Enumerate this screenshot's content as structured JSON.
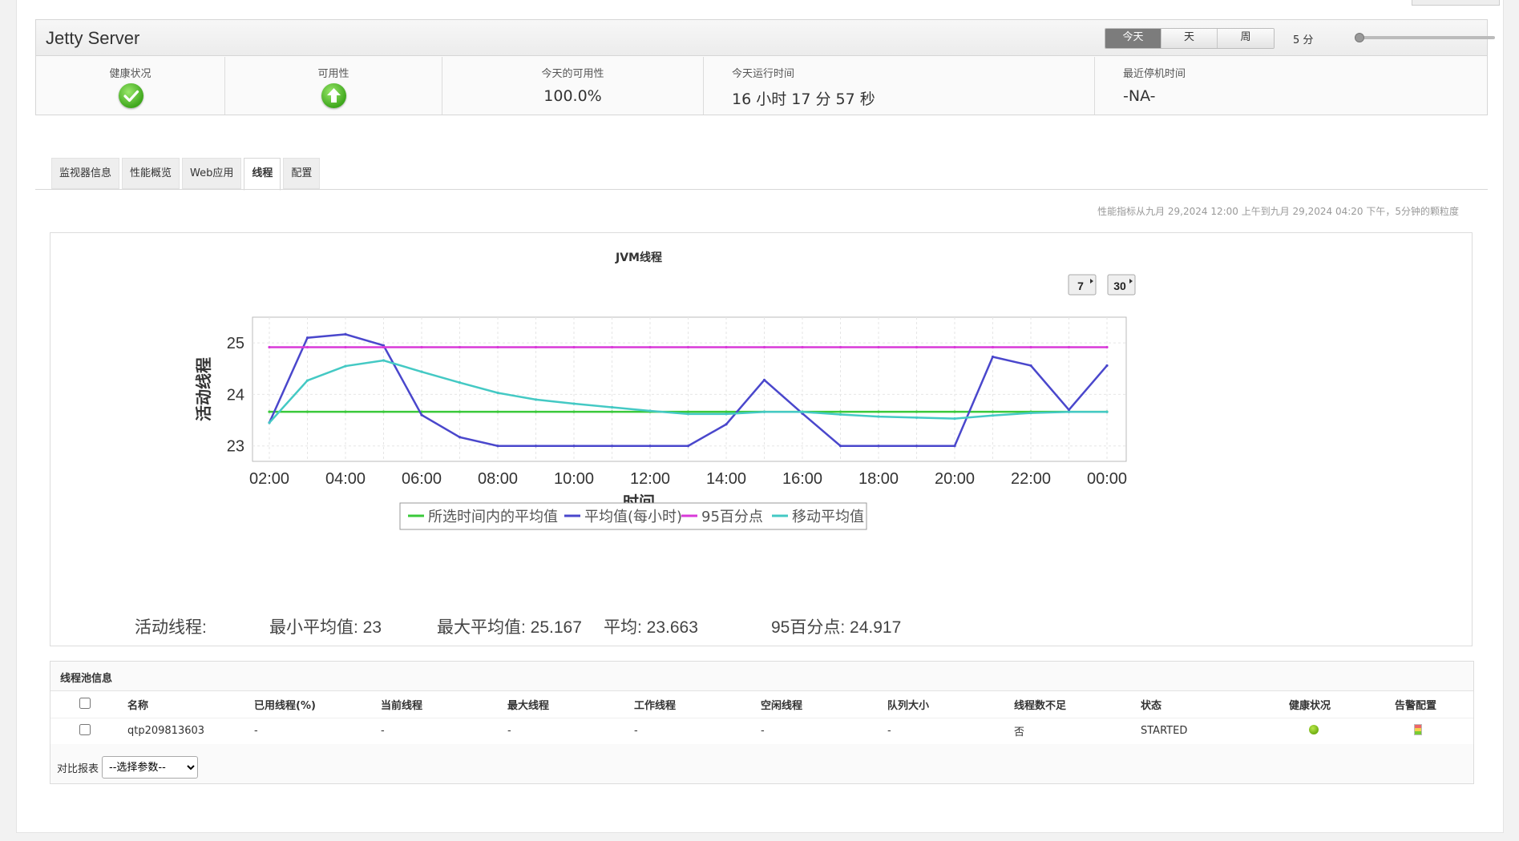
{
  "header": {
    "title": "Jetty Server",
    "period_buttons": [
      {
        "label": "今天",
        "active": true
      },
      {
        "label": "天",
        "active": false
      },
      {
        "label": "周",
        "active": false
      }
    ],
    "interval_label": "5 分",
    "stats": {
      "health": {
        "label": "健康状况",
        "icon": "check-icon",
        "color": "#4caf2a"
      },
      "availability": {
        "label": "可用性",
        "icon": "up-arrow-icon",
        "color": "#4caf2a"
      },
      "today_availability": {
        "label": "今天的可用性",
        "value": "100.0%"
      },
      "today_uptime": {
        "label": "今天运行时间",
        "value": "16 小时 17 分 57 秒"
      },
      "last_downtime": {
        "label": "最近停机时间",
        "value": "-NA-"
      }
    }
  },
  "tabs": [
    {
      "label": "监视器信息",
      "active": false
    },
    {
      "label": "性能概览",
      "active": false
    },
    {
      "label": "Web应用",
      "active": false
    },
    {
      "label": "线程",
      "active": true
    },
    {
      "label": "配置",
      "active": false
    }
  ],
  "metric_note": "性能指标从九月 29,2024 12:00 上午到九月 29,2024 04:20 下午，5分钟的颗粒度",
  "chart_buttons": {
    "seven": "7",
    "thirty": "30"
  },
  "chart_data": {
    "type": "line",
    "title": "JVM线程",
    "xlabel": "时间",
    "ylabel": "活动线程",
    "x_ticks": [
      "02:00",
      "04:00",
      "06:00",
      "08:00",
      "10:00",
      "12:00",
      "14:00",
      "16:00",
      "18:00",
      "20:00",
      "22:00",
      "00:00"
    ],
    "y_ticks": [
      23,
      24,
      25
    ],
    "ylim": [
      22.7,
      25.5
    ],
    "grid": true,
    "legend_position": "bottom",
    "x": [
      "02:00",
      "03:00",
      "04:00",
      "05:00",
      "06:00",
      "07:00",
      "08:00",
      "09:00",
      "10:00",
      "11:00",
      "12:00",
      "13:00",
      "14:00",
      "15:00",
      "16:00",
      "17:00",
      "18:00",
      "19:00",
      "20:00",
      "21:00",
      "22:00",
      "23:00",
      "00:00"
    ],
    "series": [
      {
        "name": "所选时间内的平均值",
        "color": "#3ac93a",
        "values": [
          23.663,
          23.663,
          23.663,
          23.663,
          23.663,
          23.663,
          23.663,
          23.663,
          23.663,
          23.663,
          23.663,
          23.663,
          23.663,
          23.663,
          23.663,
          23.663,
          23.663,
          23.663,
          23.663,
          23.663,
          23.663,
          23.663,
          23.663
        ]
      },
      {
        "name": "平均值(每小时)",
        "color": "#4a47cc",
        "values": [
          23.45,
          25.1,
          25.167,
          24.95,
          23.6,
          23.17,
          23.0,
          23.0,
          23.0,
          23.0,
          23.0,
          23.0,
          23.42,
          24.28,
          23.63,
          23.0,
          23.0,
          23.0,
          23.0,
          24.73,
          24.56,
          23.7,
          24.56
        ]
      },
      {
        "name": "95百分点",
        "color": "#d93ad9",
        "values": [
          24.917,
          24.917,
          24.917,
          24.917,
          24.917,
          24.917,
          24.917,
          24.917,
          24.917,
          24.917,
          24.917,
          24.917,
          24.917,
          24.917,
          24.917,
          24.917,
          24.917,
          24.917,
          24.917,
          24.917,
          24.917,
          24.917,
          24.917
        ]
      },
      {
        "name": "移动平均值",
        "color": "#44c9c4",
        "values": [
          23.45,
          24.27,
          24.55,
          24.66,
          24.44,
          24.23,
          24.03,
          23.9,
          23.82,
          23.75,
          23.68,
          23.62,
          23.62,
          23.66,
          23.66,
          23.61,
          23.57,
          23.55,
          23.53,
          23.59,
          23.64,
          23.66,
          23.66
        ]
      }
    ]
  },
  "summary": {
    "label": "活动线程:",
    "min": "最小平均值:  23",
    "max": "最大平均值:  25.167",
    "avg": "平均:  23.663",
    "p95": "95百分点:  24.917"
  },
  "pool": {
    "title": "线程池信息",
    "columns": [
      "名称",
      "已用线程(%)",
      "当前线程",
      "最大线程",
      "工作线程",
      "空闲线程",
      "队列大小",
      "线程数不足",
      "状态",
      "健康状况",
      "告警配置"
    ],
    "rows": [
      {
        "name": "qtp209813603",
        "used_pct": "-",
        "current": "-",
        "max": "-",
        "busy": "-",
        "idle": "-",
        "queue": "-",
        "low": "否",
        "state": "STARTED",
        "health_icon": "green-dot-icon",
        "alarm_icon": "alarm-config-icon"
      }
    ],
    "compare_label": "对比报表",
    "compare_select": "--选择参数--"
  }
}
